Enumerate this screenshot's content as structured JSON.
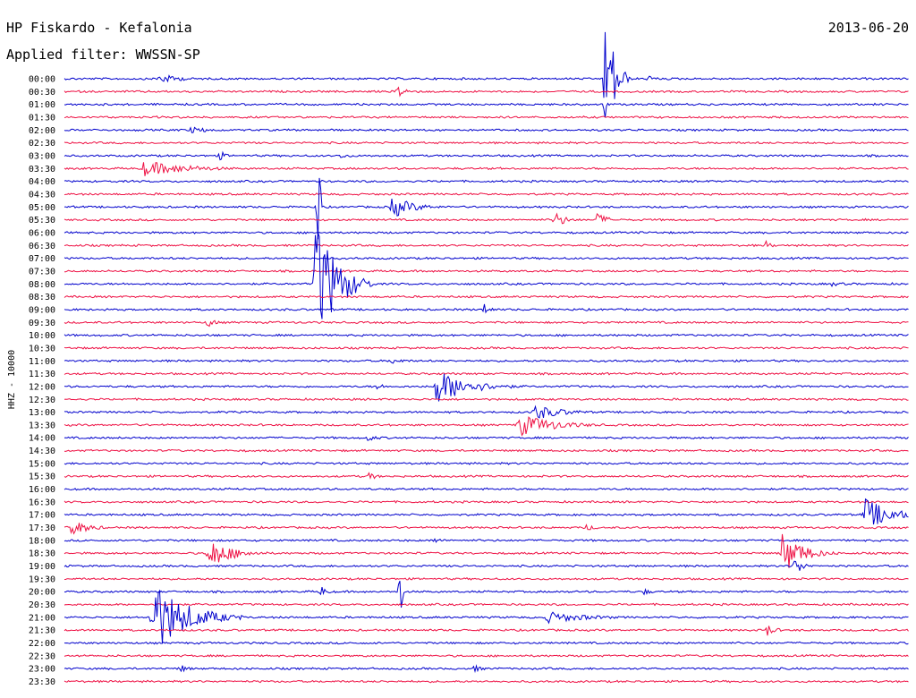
{
  "header": {
    "station": "HP Fiskardo - Kefalonia",
    "date": "2013-06-20",
    "filter": "Applied filter: WWSSN-SP"
  },
  "chart_data": {
    "type": "line",
    "subtype": "helicorder",
    "ylabel": "HHZ - 10000",
    "rows": [
      "00:00",
      "00:30",
      "01:00",
      "01:30",
      "02:00",
      "02:30",
      "03:00",
      "03:30",
      "04:00",
      "04:30",
      "05:00",
      "05:30",
      "06:00",
      "06:30",
      "07:00",
      "07:30",
      "08:00",
      "08:30",
      "09:00",
      "09:30",
      "10:00",
      "10:30",
      "11:00",
      "11:30",
      "12:00",
      "12:30",
      "13:00",
      "13:30",
      "14:00",
      "14:30",
      "15:00",
      "15:30",
      "16:00",
      "16:30",
      "17:00",
      "17:30",
      "18:00",
      "18:30",
      "19:00",
      "19:30",
      "20:00",
      "20:30",
      "21:00",
      "21:30",
      "22:00",
      "22:30",
      "23:00",
      "23:30"
    ],
    "series_colors": [
      "#0000cc",
      "#ee1144"
    ],
    "minutes_per_row": 30,
    "events": [
      {
        "row": 0,
        "minute": 3.3,
        "amp": 6,
        "dur": 0.8
      },
      {
        "row": 0,
        "minute": 19.2,
        "amp": 90,
        "dur": 0.3
      },
      {
        "row": 0,
        "minute": 20.7,
        "amp": 5,
        "dur": 0.3
      },
      {
        "row": 1,
        "minute": 11.8,
        "amp": 8,
        "dur": 0.4
      },
      {
        "row": 2,
        "minute": 19.2,
        "amp": 25,
        "dur": 0.05
      },
      {
        "row": 4,
        "minute": 4.4,
        "amp": 4,
        "dur": 0.9
      },
      {
        "row": 6,
        "minute": 5.5,
        "amp": 7,
        "dur": 0.2
      },
      {
        "row": 6,
        "minute": 9.8,
        "amp": 3,
        "dur": 0.5
      },
      {
        "row": 7,
        "minute": 2.8,
        "amp": 9,
        "dur": 1.6
      },
      {
        "row": 10,
        "minute": 11.6,
        "amp": 14,
        "dur": 0.7
      },
      {
        "row": 10,
        "minute": 9.0,
        "amp": 230,
        "dur": 0.05
      },
      {
        "row": 11,
        "minute": 17.4,
        "amp": 10,
        "dur": 0.4
      },
      {
        "row": 11,
        "minute": 18.9,
        "amp": 8,
        "dur": 0.4
      },
      {
        "row": 13,
        "minute": 24.9,
        "amp": 6,
        "dur": 0.2
      },
      {
        "row": 16,
        "minute": 8.9,
        "amp": 80,
        "dur": 0.7
      },
      {
        "row": 16,
        "minute": 27.2,
        "amp": 3,
        "dur": 0.6
      },
      {
        "row": 18,
        "minute": 14.9,
        "amp": 9,
        "dur": 0.2
      },
      {
        "row": 19,
        "minute": 5.1,
        "amp": 9,
        "dur": 0.2
      },
      {
        "row": 22,
        "minute": 11.6,
        "amp": 4,
        "dur": 0.5
      },
      {
        "row": 24,
        "minute": 13.2,
        "amp": 20,
        "dur": 1.1
      },
      {
        "row": 24,
        "minute": 11.1,
        "amp": 6,
        "dur": 0.2
      },
      {
        "row": 26,
        "minute": 16.6,
        "amp": 10,
        "dur": 1.0
      },
      {
        "row": 27,
        "minute": 16.1,
        "amp": 14,
        "dur": 1.2
      },
      {
        "row": 28,
        "minute": 10.7,
        "amp": 4,
        "dur": 0.5
      },
      {
        "row": 31,
        "minute": 10.8,
        "amp": 5,
        "dur": 0.3
      },
      {
        "row": 34,
        "minute": 28.4,
        "amp": 20,
        "dur": 0.9
      },
      {
        "row": 35,
        "minute": 0.1,
        "amp": 12,
        "dur": 0.6
      },
      {
        "row": 35,
        "minute": 18.5,
        "amp": 5,
        "dur": 0.3
      },
      {
        "row": 36,
        "minute": 13.1,
        "amp": 4,
        "dur": 0.3
      },
      {
        "row": 37,
        "minute": 5.1,
        "amp": 18,
        "dur": 0.8
      },
      {
        "row": 37,
        "minute": 25.5,
        "amp": 25,
        "dur": 0.7
      },
      {
        "row": 38,
        "minute": 25.9,
        "amp": 12,
        "dur": 0.3
      },
      {
        "row": 40,
        "minute": 9.1,
        "amp": 8,
        "dur": 0.2
      },
      {
        "row": 40,
        "minute": 11.9,
        "amp": 40,
        "dur": 0.1
      },
      {
        "row": 40,
        "minute": 20.5,
        "amp": 5,
        "dur": 0.3
      },
      {
        "row": 42,
        "minute": 3.1,
        "amp": 45,
        "dur": 1.1
      },
      {
        "row": 42,
        "minute": 17.1,
        "amp": 7,
        "dur": 1.4
      },
      {
        "row": 43,
        "minute": 24.9,
        "amp": 9,
        "dur": 0.3
      },
      {
        "row": 46,
        "minute": 4.1,
        "amp": 5,
        "dur": 0.3
      },
      {
        "row": 46,
        "minute": 14.5,
        "amp": 5,
        "dur": 0.3
      }
    ]
  }
}
